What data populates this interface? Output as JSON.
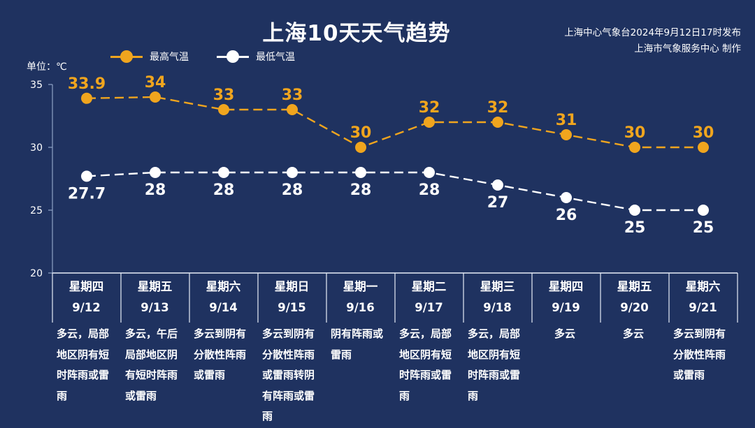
{
  "header": {
    "title": "上海10天天气趋势",
    "publish_line1": "上海中心气象台2024年9月12日17时发布",
    "publish_line2": "上海市气象服务中心 制作"
  },
  "legend": {
    "high_label": "最高气温",
    "low_label": "最低气温"
  },
  "unit_label": "单位：℃",
  "colors": {
    "background": "#1f3260",
    "high": "#f0a51e",
    "low": "#ffffff",
    "grid": "#8fa3c6"
  },
  "chart_data": {
    "type": "line",
    "categories": [
      "9/12",
      "9/13",
      "9/14",
      "9/15",
      "9/16",
      "9/17",
      "9/18",
      "9/19",
      "9/20",
      "9/21"
    ],
    "series": [
      {
        "name": "最高气温",
        "values": [
          33.9,
          34,
          33,
          33,
          30,
          32,
          32,
          31,
          30,
          30
        ],
        "labels": [
          "33.9",
          "34",
          "33",
          "33",
          "30",
          "32",
          "32",
          "31",
          "30",
          "30"
        ]
      },
      {
        "name": "最低气温",
        "values": [
          27.7,
          28,
          28,
          28,
          28,
          28,
          27,
          26,
          25,
          25
        ],
        "labels": [
          "27.7",
          "28",
          "28",
          "28",
          "28",
          "28",
          "27",
          "26",
          "25",
          "25"
        ]
      }
    ],
    "ylim": [
      20,
      35
    ],
    "yticks": [
      20,
      25,
      30,
      35
    ],
    "line_style": "dashed",
    "legend_position": "top-left"
  },
  "days": [
    {
      "weekday": "星期四",
      "date": "9/12",
      "weather": "多云，局部地区阴有短时阵雨或雷雨"
    },
    {
      "weekday": "星期五",
      "date": "9/13",
      "weather": "多云，午后局部地区阴有短时阵雨或雷雨"
    },
    {
      "weekday": "星期六",
      "date": "9/14",
      "weather": "多云到阴有分散性阵雨或雷雨"
    },
    {
      "weekday": "星期日",
      "date": "9/15",
      "weather": "多云到阴有分散性阵雨或雷雨转阴有阵雨或雷雨"
    },
    {
      "weekday": "星期一",
      "date": "9/16",
      "weather": "阴有阵雨或雷雨"
    },
    {
      "weekday": "星期二",
      "date": "9/17",
      "weather": "多云，局部地区阴有短时阵雨或雷雨"
    },
    {
      "weekday": "星期三",
      "date": "9/18",
      "weather": "多云，局部地区阴有短时阵雨或雷雨"
    },
    {
      "weekday": "星期四",
      "date": "9/19",
      "weather": "多云"
    },
    {
      "weekday": "星期五",
      "date": "9/20",
      "weather": "多云"
    },
    {
      "weekday": "星期六",
      "date": "9/21",
      "weather": "多云到阴有分散性阵雨或雷雨"
    }
  ]
}
